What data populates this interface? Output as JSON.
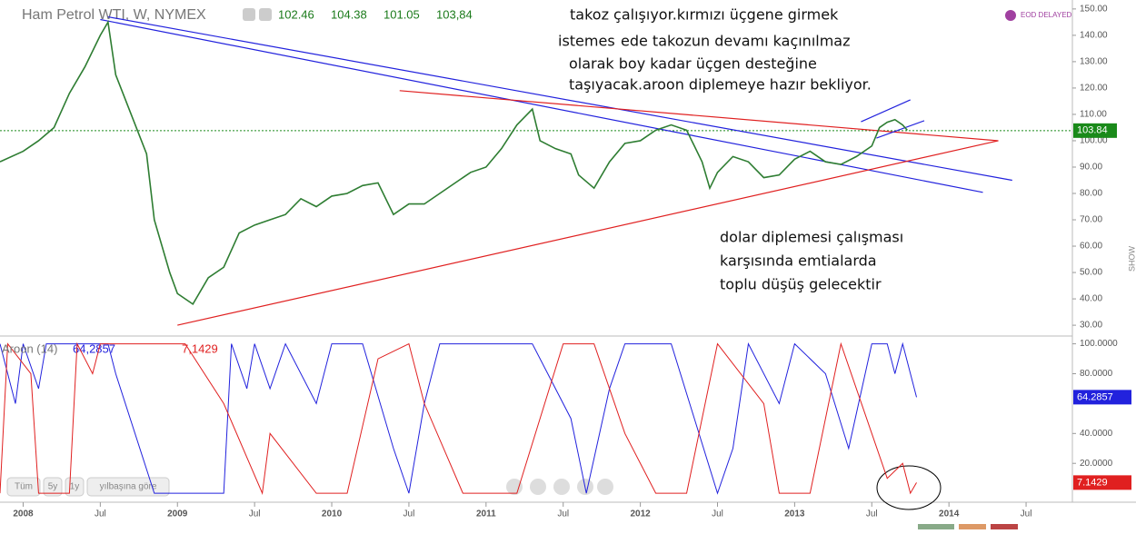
{
  "header": {
    "title": "Ham Petrol WTI, W, NYMEX",
    "quote": {
      "values": [
        102.46,
        104.38,
        101.05,
        103.84
      ],
      "value_labels": [
        "102.46",
        "104.38",
        "101.05",
        "103,84"
      ]
    },
    "badge": "EOD DELAYED",
    "side_tab": "SHOW",
    "range_buttons": [
      "Tüm",
      "5y",
      "1y",
      "yılbaşına göre"
    ]
  },
  "annotations": [
    {
      "lines": [
        "takoz çalışıyor.kırmızı üçgene girmek",
        "istemes",
        "ede takozun devamı kaçınılmaz",
        "olarak boy kadar üçgen desteğine",
        "taşıyacak.aroon diplemeye hazır bekliyor."
      ]
    },
    {
      "lines": [
        "dolar diplemesi çalışması",
        "karşısında emtialarda",
        "toplu düşüş gelecektir"
      ]
    }
  ],
  "chart_data": [
    {
      "type": "line",
      "xlim": [
        2007.85,
        2014.8
      ],
      "ylim": [
        25.9,
        153.4
      ],
      "yticks": [
        {
          "value": 30,
          "label": "30.00"
        },
        {
          "value": 40,
          "label": "40.00"
        },
        {
          "value": 50,
          "label": "50.00"
        },
        {
          "value": 60,
          "label": "60.00"
        },
        {
          "value": 70,
          "label": "70.00"
        },
        {
          "value": 80,
          "label": "80.00"
        },
        {
          "value": 90,
          "label": "90.00"
        },
        {
          "value": 100,
          "label": "100.00"
        },
        {
          "value": 110,
          "label": "110.00"
        },
        {
          "value": 120,
          "label": "120.00"
        },
        {
          "value": 130,
          "label": "130.00"
        },
        {
          "value": 140,
          "label": "140.00"
        },
        {
          "value": 150,
          "label": "150.00"
        }
      ],
      "last": 103.84,
      "last_color": "#1a8a1a",
      "series": [
        {
          "color": "#2e7d32",
          "x": [
            2007.85,
            2008.0,
            2008.1,
            2008.2,
            2008.3,
            2008.4,
            2008.5,
            2008.55,
            2008.6,
            2008.7,
            2008.8,
            2008.85,
            2008.95,
            2009.0,
            2009.1,
            2009.2,
            2009.3,
            2009.4,
            2009.5,
            2009.6,
            2009.7,
            2009.8,
            2009.9,
            2010.0,
            2010.1,
            2010.2,
            2010.3,
            2010.4,
            2010.5,
            2010.6,
            2010.7,
            2010.8,
            2010.9,
            2011.0,
            2011.1,
            2011.2,
            2011.3,
            2011.35,
            2011.45,
            2011.55,
            2011.6,
            2011.7,
            2011.8,
            2011.9,
            2012.0,
            2012.1,
            2012.2,
            2012.3,
            2012.4,
            2012.45,
            2012.5,
            2012.6,
            2012.7,
            2012.8,
            2012.9,
            2013.0,
            2013.1,
            2013.2,
            2013.3,
            2013.4,
            2013.5,
            2013.55,
            2013.6,
            2013.65,
            2013.7,
            2013.73
          ],
          "values": [
            92,
            96,
            100,
            105,
            118,
            128,
            140,
            145,
            125,
            110,
            95,
            70,
            50,
            42,
            38,
            48,
            52,
            65,
            68,
            70,
            72,
            78,
            75,
            79,
            80,
            83,
            84,
            72,
            76,
            76,
            80,
            84,
            88,
            90,
            97,
            106,
            112,
            100,
            97,
            95,
            87,
            82,
            92,
            99,
            100,
            104,
            106,
            104,
            92,
            82,
            88,
            94,
            92,
            86,
            87,
            93,
            96,
            92,
            91,
            94,
            98,
            105,
            107,
            108,
            106,
            104
          ]
        }
      ],
      "trendlines": [
        {
          "color": "#2222dd",
          "x": [
            2008.55,
            2014.41
          ],
          "y": [
            147,
            85
          ]
        },
        {
          "color": "#2222dd",
          "x": [
            2008.5,
            2014.22
          ],
          "y": [
            146,
            80.4
          ]
        },
        {
          "color": "#e02020",
          "x": [
            2009.0,
            2014.32
          ],
          "y": [
            30,
            100
          ]
        },
        {
          "color": "#e02020",
          "x": [
            2010.44,
            2014.32
          ],
          "y": [
            119,
            100
          ]
        },
        {
          "color": "#2222dd",
          "x": [
            2013.43,
            2013.75
          ],
          "y": [
            107.2,
            115.5
          ]
        },
        {
          "color": "#2222dd",
          "x": [
            2013.53,
            2013.84
          ],
          "y": [
            101,
            107.6
          ]
        }
      ]
    },
    {
      "type": "line",
      "title": "Aroon (14)",
      "xlim": [
        2007.85,
        2014.8
      ],
      "ylim": [
        -6,
        104
      ],
      "yticks": [
        {
          "value": 20,
          "label": "20.0000"
        },
        {
          "value": 40,
          "label": "40.0000"
        },
        {
          "value": 80,
          "label": "80.0000"
        },
        {
          "value": 100,
          "label": "100.0000"
        }
      ],
      "xticks": [
        2008,
        {
          "value": 2008.5,
          "label": "Jul"
        },
        2009,
        {
          "value": 2009.5,
          "label": "Jul"
        },
        2010,
        {
          "value": 2010.5,
          "label": "Jul"
        },
        2011,
        {
          "value": 2011.5,
          "label": "Jul"
        },
        2012,
        {
          "value": 2012.5,
          "label": "Jul"
        },
        2013,
        {
          "value": 2013.5,
          "label": "Jul"
        },
        2014,
        {
          "value": 2014.5,
          "label": "Jul"
        }
      ],
      "series": [
        {
          "color": "#2222dd",
          "value_label": "64,2857",
          "x": [
            2007.85,
            2007.95,
            2008.0,
            2008.1,
            2008.15,
            2008.55,
            2008.6,
            2008.85,
            2009.3,
            2009.35,
            2009.45,
            2009.5,
            2009.6,
            2009.7,
            2009.9,
            2010.0,
            2010.2,
            2010.4,
            2010.5,
            2010.6,
            2010.7,
            2011.0,
            2011.3,
            2011.55,
            2011.65,
            2011.8,
            2011.9,
            2012.2,
            2012.5,
            2012.6,
            2012.7,
            2012.9,
            2013.0,
            2013.2,
            2013.35,
            2013.5,
            2013.6,
            2013.65,
            2013.7,
            2013.79
          ],
          "values": [
            100,
            60,
            100,
            70,
            100,
            100,
            80,
            0,
            0,
            100,
            70,
            100,
            70,
            100,
            60,
            100,
            100,
            30,
            0,
            60,
            100,
            100,
            100,
            50,
            0,
            70,
            100,
            100,
            0,
            30,
            100,
            60,
            100,
            80,
            30,
            100,
            100,
            80,
            100,
            64.2857
          ]
        },
        {
          "color": "#e02020",
          "value_label": "7,1429",
          "x": [
            2007.85,
            2007.9,
            2008.05,
            2008.1,
            2008.3,
            2008.35,
            2008.45,
            2008.5,
            2008.6,
            2008.85,
            2009.05,
            2009.3,
            2009.55,
            2009.6,
            2009.9,
            2010.1,
            2010.3,
            2010.5,
            2010.6,
            2010.85,
            2011.0,
            2011.2,
            2011.5,
            2011.7,
            2011.9,
            2012.1,
            2012.3,
            2012.5,
            2012.8,
            2012.9,
            2013.1,
            2013.3,
            2013.5,
            2013.6,
            2013.7,
            2013.75,
            2013.79
          ],
          "values": [
            0,
            100,
            80,
            0,
            0,
            100,
            80,
            100,
            100,
            100,
            100,
            60,
            0,
            40,
            0,
            0,
            90,
            100,
            60,
            0,
            0,
            0,
            100,
            100,
            40,
            0,
            0,
            100,
            60,
            0,
            0,
            100,
            40,
            10,
            20,
            0,
            7.1429
          ]
        }
      ]
    }
  ]
}
